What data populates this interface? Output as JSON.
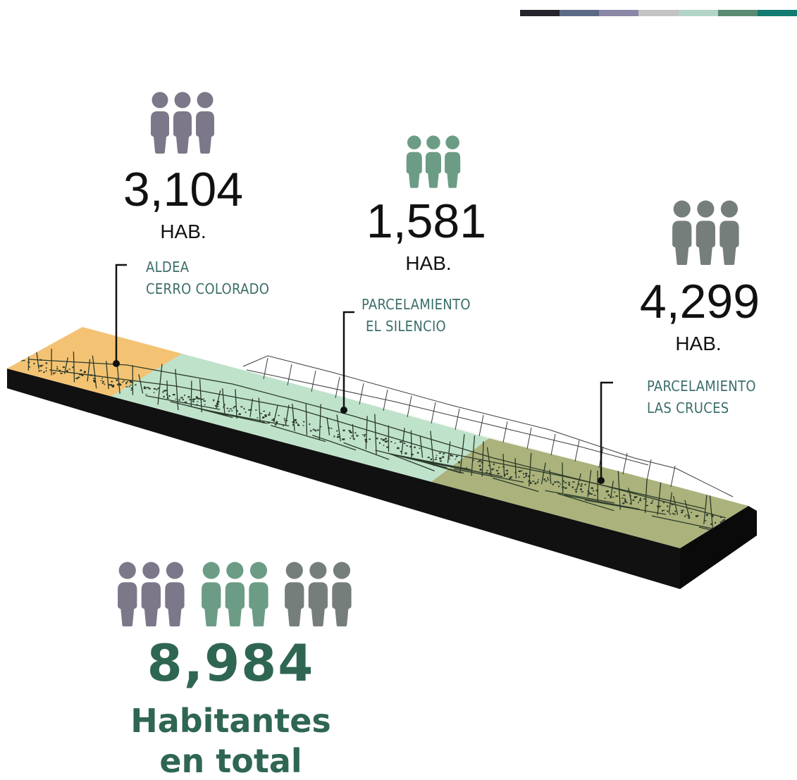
{
  "colors": {
    "palette": [
      "#25232c",
      "#5b6b85",
      "#8a86a5",
      "#c3c3c3",
      "#b3d5c8",
      "#5b8a72",
      "#127b72"
    ],
    "purple_people": "#7c7789",
    "green_people": "#6c9c85",
    "gray_people": "#767e7b",
    "zone_orange": "#f2c06c",
    "zone_green": "#b8dfc7",
    "zone_olive": "#a6ae74",
    "label_teal": "#3b6e6a",
    "total_green": "#2f6652"
  },
  "icons": {
    "people": "people-group-icon"
  },
  "communities": [
    {
      "population": "3,104",
      "unit": "HAB.",
      "name_lines": [
        "ALDEA",
        "CERRO COLORADO"
      ]
    },
    {
      "population": "1,581",
      "unit": "HAB.",
      "name_lines": [
        "PARCELAMIENTO",
        "EL SILENCIO"
      ]
    },
    {
      "population": "4,299",
      "unit": "HAB.",
      "name_lines": [
        "PARCELAMIENTO",
        "LAS CRUCES"
      ]
    }
  ],
  "total": {
    "value": "8,984",
    "label_line1": "Habitantes",
    "label_line2": "en total"
  }
}
